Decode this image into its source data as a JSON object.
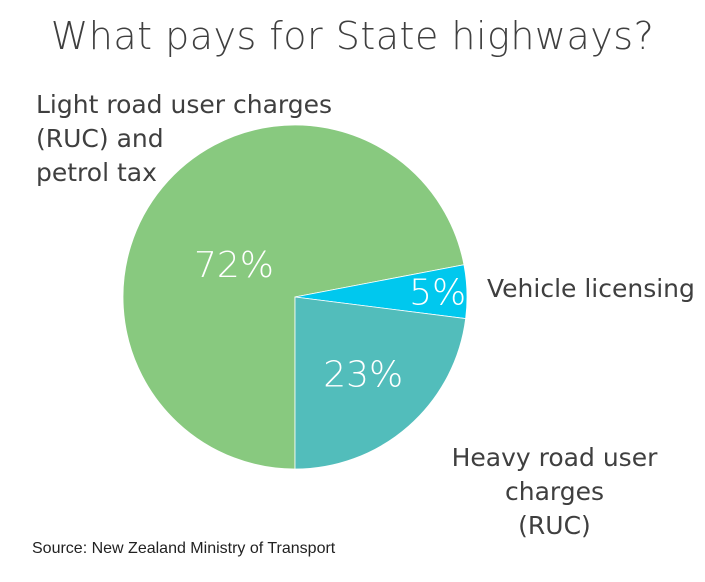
{
  "chart_data": {
    "type": "pie",
    "title": "What pays for State highways?",
    "slices": [
      {
        "label": "Light road user charges (RUC) and petrol tax",
        "label_lines": [
          "Light road user charges",
          "(RUC) and",
          "petrol tax"
        ],
        "value": 72,
        "data_label": "72%",
        "color": "#88C97F"
      },
      {
        "label": "Vehicle licensing",
        "label_lines": [
          "Vehicle licensing"
        ],
        "value": 5,
        "data_label": "5%",
        "color": "#00C8EE"
      },
      {
        "label": "Heavy road user charges (RUC)",
        "label_lines": [
          "Heavy road user charges",
          "(RUC)"
        ],
        "value": 23,
        "data_label": "23%",
        "color": "#52BDBB"
      }
    ],
    "start": "bottom",
    "direction": "clockwise",
    "legend": "none",
    "source": "Source: New Zealand Ministry of Transport"
  }
}
